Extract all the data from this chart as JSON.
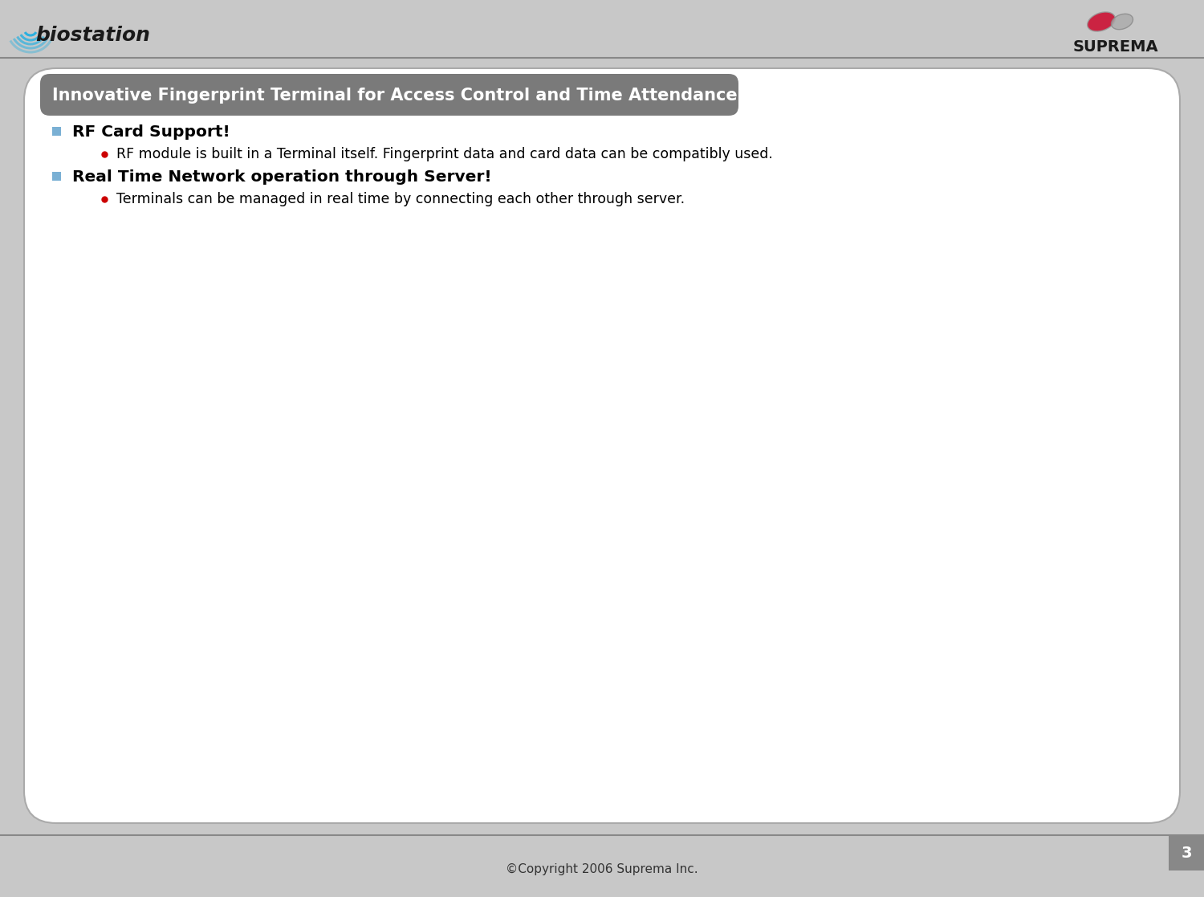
{
  "bg_color": "#c8c8c8",
  "slide_bg": "#ffffff",
  "header_bg": "#7a7a7a",
  "header_text": "Innovative Fingerprint Terminal for Access Control and Time Attendance",
  "header_text_color": "#ffffff",
  "header_fontsize": 15,
  "bullet1_text": "RF Card Support!",
  "bullet1_sub": "RF module is built in a Terminal itself. Fingerprint data and card data can be compatibly used.",
  "bullet2_text": "Real Time Network operation through Server!",
  "bullet2_sub": "Terminals can be managed in real time by connecting each other through server.",
  "bullet_color": "#7ab0d4",
  "subbullet_color": "#cc0000",
  "text_color": "#000000",
  "copyright_text": "©Copyright 2006 Suprema Inc.",
  "page_number": "3",
  "footer_bg": "#c8c8c8",
  "biostation_text": "biostation",
  "suprema_text": "SUPREMA",
  "biostation_color": "#1a1a1a",
  "biostation_wave_color": "#2ab0e0"
}
